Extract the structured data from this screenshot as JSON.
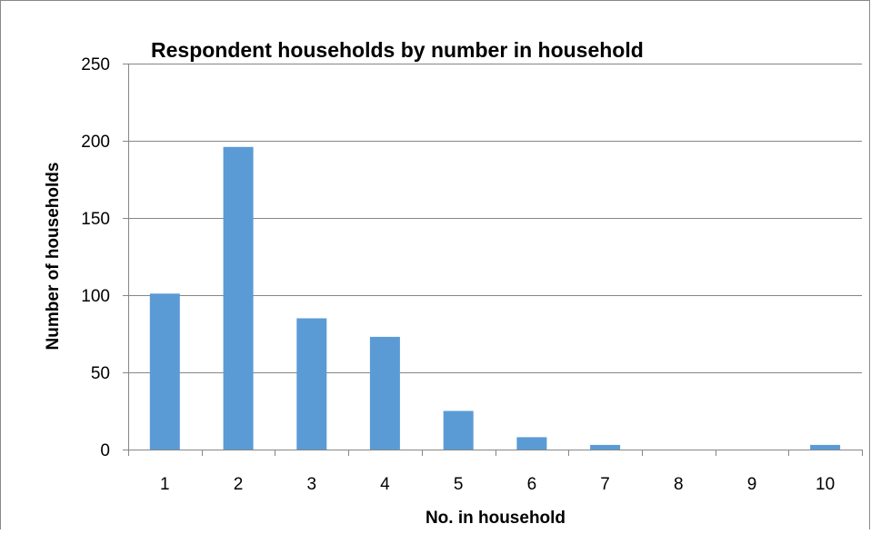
{
  "chart_data": {
    "type": "bar",
    "title": "Respondent households by number in household",
    "xlabel": "No. in household",
    "ylabel": "Number  of households",
    "categories": [
      "1",
      "2",
      "3",
      "4",
      "5",
      "6",
      "7",
      "8",
      "9",
      "10"
    ],
    "values": [
      101,
      196,
      85,
      73,
      25,
      8,
      3,
      0,
      0,
      3
    ],
    "ylim": [
      0,
      250
    ],
    "yticks": [
      0,
      50,
      100,
      150,
      200,
      250
    ],
    "grid": true,
    "legend": "none",
    "bar_color": "#5b9bd5",
    "gridline_color": "#868686"
  }
}
